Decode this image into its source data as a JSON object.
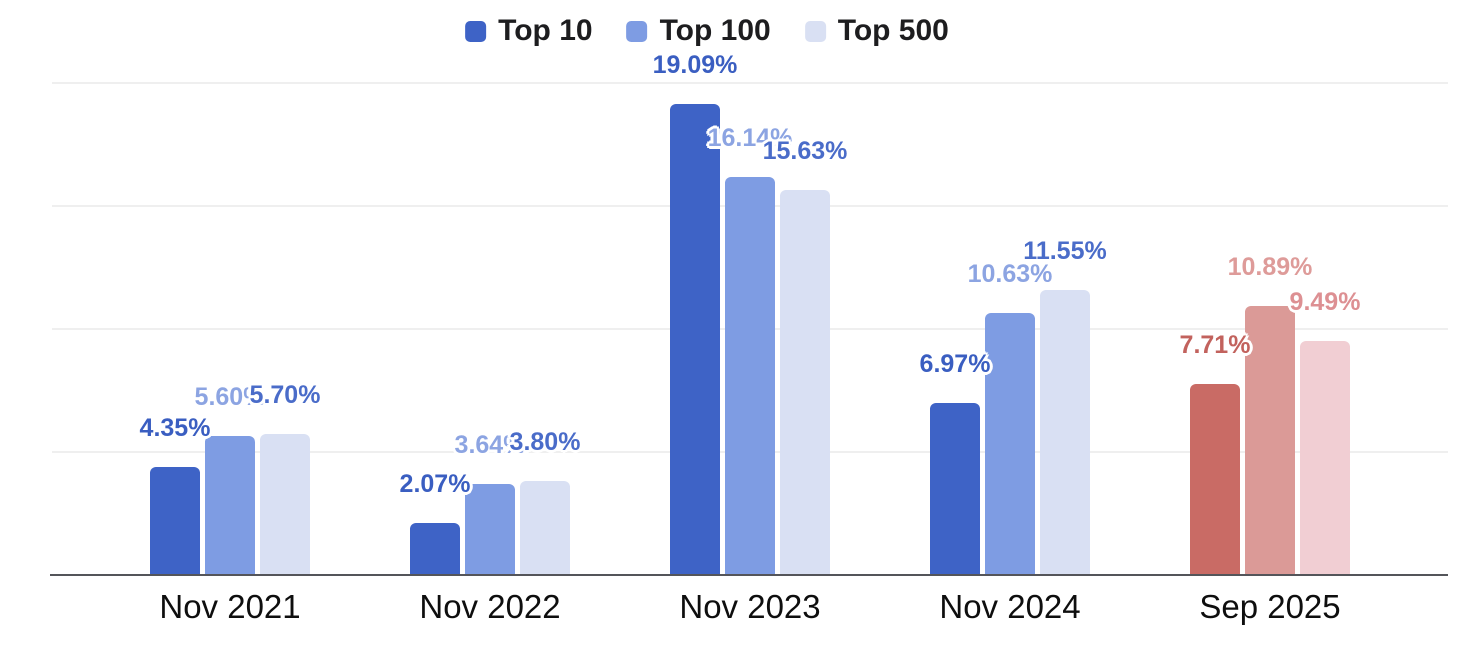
{
  "chart_data": {
    "type": "bar",
    "title": "",
    "categories": [
      "Nov 2021",
      "Nov 2022",
      "Nov 2023",
      "Nov 2024",
      "Sep 2025"
    ],
    "series": [
      {
        "name": "Top 10",
        "values": [
          4.35,
          2.07,
          19.09,
          6.97,
          7.71
        ]
      },
      {
        "name": "Top 100",
        "values": [
          5.6,
          3.64,
          16.14,
          10.63,
          10.89
        ]
      },
      {
        "name": "Top 500",
        "values": [
          5.7,
          3.8,
          15.63,
          11.55,
          9.49
        ]
      }
    ],
    "data_labels": [
      [
        "4.35%",
        "5.60%",
        "5.70%"
      ],
      [
        "2.07%",
        "3.64%",
        "3.80%"
      ],
      [
        "19.09%",
        "16.14%",
        "15.63%"
      ],
      [
        "6.97%",
        "10.63%",
        "11.55%"
      ],
      [
        "7.71%",
        "10.89%",
        "9.49%"
      ]
    ],
    "xlabel": "",
    "ylabel": "",
    "ylim": [
      0,
      20
    ],
    "gridline_step_pct": 5,
    "grid": true,
    "y_axis_labels_visible": false,
    "legend_position": "top-center",
    "legend_entries": [
      "Top 10",
      "Top 100",
      "Top 500"
    ],
    "highlight_category": "Sep 2025",
    "highlight_category_index": 4
  },
  "colors": {
    "series_blue": [
      "#3E63C6",
      "#7E9CE3",
      "#D9E0F3"
    ],
    "series_red": [
      "#C96B65",
      "#DB9A97",
      "#F1CED3"
    ],
    "label_blue": [
      "#3A5EC1",
      "#8CA4E2",
      "#4A6CC9"
    ],
    "label_red": [
      "#C2625D",
      "#DE9B99",
      "#DD9093"
    ],
    "legend_text": "#1D1D1F",
    "category_text": "#0E0E0E",
    "axis_line": "#54555A",
    "gridline": "#EFEFEF",
    "background": "#FFFFFF"
  }
}
